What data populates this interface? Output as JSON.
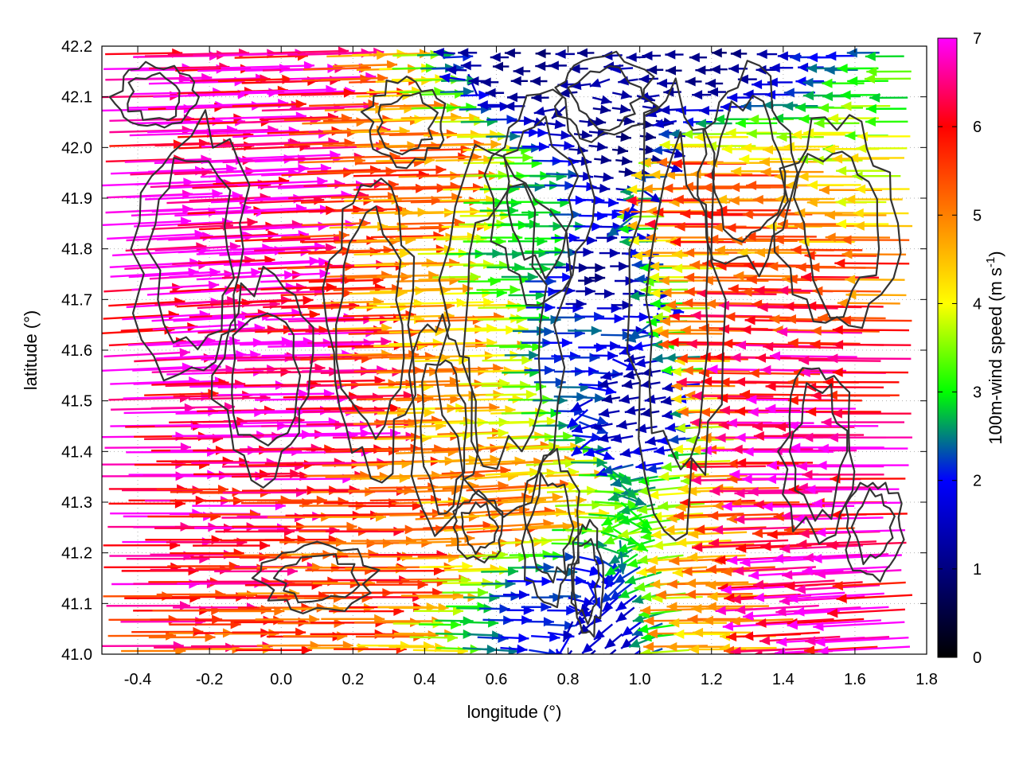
{
  "chart_data": {
    "type": "vector-field",
    "title": "",
    "xlabel": "longitude (°)",
    "ylabel": "latitude (°)",
    "xlim": [
      -0.5,
      1.8
    ],
    "ylim": [
      41.0,
      42.2
    ],
    "xticks": [
      "-0.4",
      "-0.2",
      "0.0",
      "0.2",
      "0.4",
      "0.6",
      "0.8",
      "1.0",
      "1.2",
      "1.4",
      "1.6",
      "1.8"
    ],
    "xtick_values": [
      -0.4,
      -0.2,
      0.0,
      0.2,
      0.4,
      0.6,
      0.8,
      1.0,
      1.2,
      1.4,
      1.6,
      1.8
    ],
    "yticks": [
      "41.0",
      "41.1",
      "41.2",
      "41.3",
      "41.4",
      "41.5",
      "41.6",
      "41.7",
      "41.8",
      "41.9",
      "42.0",
      "42.1",
      "42.2"
    ],
    "ytick_values": [
      41.0,
      41.1,
      41.2,
      41.3,
      41.4,
      41.5,
      41.6,
      41.7,
      41.8,
      41.9,
      42.0,
      42.1,
      42.2
    ],
    "grid": true,
    "colorbar": {
      "label": "100m-wind speed (m s-1)",
      "label_main": "100m-wind speed (m s",
      "label_sup": "-1",
      "label_end": ")",
      "range": [
        0,
        7
      ],
      "ticks": [
        "0",
        "1",
        "2",
        "3",
        "4",
        "5",
        "6",
        "7"
      ],
      "colors": [
        "#000000",
        "#000080",
        "#0000ff",
        "#00ff00",
        "#ffff00",
        "#ff8000",
        "#ff0000",
        "#ff00ff"
      ]
    },
    "contour_color": "#333333",
    "vectors": [
      {
        "lon": -0.45,
        "lat": 42.18,
        "u": 6.8,
        "v": 0.1,
        "speed": 6.8
      },
      {
        "lon": -0.3,
        "lat": 42.1,
        "u": 6.9,
        "v": 0.2,
        "speed": 6.9
      },
      {
        "lon": -0.2,
        "lat": 41.9,
        "u": 7.0,
        "v": 0.3,
        "speed": 7.0
      },
      {
        "lon": -0.4,
        "lat": 41.7,
        "u": 7.0,
        "v": 0.4,
        "speed": 7.0
      },
      {
        "lon": -0.1,
        "lat": 41.5,
        "u": 7.0,
        "v": 0.1,
        "speed": 7.0
      },
      {
        "lon": -0.35,
        "lat": 41.3,
        "u": 6.5,
        "v": 0.0,
        "speed": 6.5
      },
      {
        "lon": 0.1,
        "lat": 41.2,
        "u": 5.5,
        "v": 0.0,
        "speed": 5.5
      },
      {
        "lon": 0.3,
        "lat": 41.9,
        "u": 5.2,
        "v": 0.1,
        "speed": 5.2
      },
      {
        "lon": 0.4,
        "lat": 41.6,
        "u": 4.8,
        "v": 0.1,
        "speed": 4.8
      },
      {
        "lon": 0.6,
        "lat": 41.8,
        "u": 3.0,
        "v": 0.0,
        "speed": 3.0
      },
      {
        "lon": 0.75,
        "lat": 41.6,
        "u": 2.2,
        "v": 0.0,
        "speed": 2.2
      },
      {
        "lon": 0.85,
        "lat": 41.75,
        "u": 1.1,
        "v": 0.0,
        "speed": 1.1
      },
      {
        "lon": 0.95,
        "lat": 42.0,
        "u": 1.0,
        "v": -0.1,
        "speed": 1.0
      },
      {
        "lon": 1.0,
        "lat": 41.5,
        "u": -1.2,
        "v": -0.2,
        "speed": 1.2
      },
      {
        "lon": 1.25,
        "lat": 41.9,
        "u": -5.5,
        "v": 0.0,
        "speed": 5.5
      },
      {
        "lon": 1.45,
        "lat": 41.6,
        "u": -6.2,
        "v": 0.1,
        "speed": 6.2
      },
      {
        "lon": 1.6,
        "lat": 41.4,
        "u": -6.8,
        "v": 0.0,
        "speed": 6.8
      },
      {
        "lon": 1.55,
        "lat": 41.1,
        "u": -7.0,
        "v": -0.4,
        "speed": 7.0
      },
      {
        "lon": 1.3,
        "lat": 41.05,
        "u": -4.5,
        "v": 0.0,
        "speed": 4.5
      },
      {
        "lon": 1.2,
        "lat": 42.18,
        "u": -1.0,
        "v": 0.0,
        "speed": 1.0
      },
      {
        "lon": 0.7,
        "lat": 42.18,
        "u": -1.0,
        "v": 0.0,
        "speed": 1.0
      },
      {
        "lon": 0.55,
        "lat": 41.3,
        "u": 5.0,
        "v": 0.3,
        "speed": 5.0
      },
      {
        "lon": 0.7,
        "lat": 41.1,
        "u": 2.0,
        "v": 0.0,
        "speed": 2.0
      },
      {
        "lon": 0.9,
        "lat": 41.05,
        "u": -1.2,
        "v": -1.0,
        "speed": 1.5
      }
    ]
  }
}
